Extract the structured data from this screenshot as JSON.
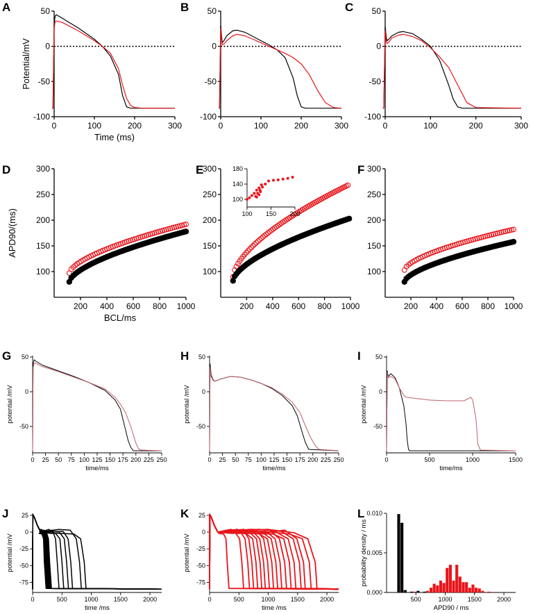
{
  "figure": {
    "panel_labels": [
      "A",
      "B",
      "C",
      "D",
      "E",
      "F",
      "G",
      "H",
      "I",
      "J",
      "K",
      "L"
    ]
  },
  "colors": {
    "control": "#000000",
    "mutant": "#e8151b",
    "mutant_light": "#c0606a"
  },
  "chart_data": [
    {
      "id": "A",
      "type": "line",
      "xlabel": "Time (ms)",
      "ylabel": "Potential/mV",
      "xlim": [
        0,
        300
      ],
      "ylim": [
        -100,
        50
      ],
      "xticks": [
        "0",
        "100",
        "200",
        "300"
      ],
      "yticks": [
        "50",
        "0",
        "-50",
        "-100"
      ],
      "reference_line": 0,
      "series": [
        {
          "name": "black",
          "color": "#000000",
          "x": [
            -5,
            -3,
            0,
            2,
            5,
            20,
            40,
            60,
            80,
            100,
            120,
            140,
            160,
            170,
            180,
            190,
            200,
            300
          ],
          "y": [
            -88,
            -88,
            30,
            42,
            45,
            40,
            33,
            26,
            18,
            10,
            0,
            -14,
            -40,
            -70,
            -86,
            -88,
            -88,
            -88
          ]
        },
        {
          "name": "red",
          "color": "#e8151b",
          "x": [
            -5,
            -3,
            0,
            2,
            5,
            20,
            40,
            60,
            80,
            100,
            120,
            140,
            160,
            170,
            180,
            190,
            200,
            220,
            300
          ],
          "y": [
            -88,
            -88,
            25,
            34,
            36,
            34,
            28,
            22,
            15,
            8,
            0,
            -10,
            -32,
            -55,
            -74,
            -84,
            -87,
            -88,
            -88
          ]
        }
      ]
    },
    {
      "id": "B",
      "type": "line",
      "xlabel": "",
      "ylabel": "",
      "xlim": [
        0,
        300
      ],
      "ylim": [
        -100,
        50
      ],
      "xticks": [
        "0",
        "100",
        "200",
        "300"
      ],
      "yticks": [
        "50",
        "0",
        "-50",
        "-100"
      ],
      "reference_line": 0,
      "series": [
        {
          "name": "black",
          "color": "#000000",
          "x": [
            -5,
            -3,
            0,
            2,
            4,
            8,
            15,
            30,
            40,
            60,
            80,
            100,
            120,
            140,
            160,
            180,
            190,
            200,
            210,
            300
          ],
          "y": [
            -88,
            -88,
            30,
            15,
            5,
            8,
            15,
            22,
            23,
            20,
            14,
            8,
            2,
            -5,
            -16,
            -45,
            -70,
            -86,
            -88,
            -88
          ]
        },
        {
          "name": "red",
          "color": "#e8151b",
          "x": [
            -5,
            -3,
            0,
            2,
            4,
            8,
            15,
            30,
            40,
            60,
            80,
            100,
            120,
            140,
            160,
            180,
            200,
            220,
            240,
            260,
            280,
            300
          ],
          "y": [
            -88,
            -88,
            25,
            10,
            2,
            3,
            8,
            15,
            17,
            15,
            10,
            5,
            0,
            -5,
            -10,
            -16,
            -25,
            -40,
            -62,
            -80,
            -87,
            -88
          ]
        }
      ]
    },
    {
      "id": "C",
      "type": "line",
      "xlabel": "",
      "ylabel": "",
      "xlim": [
        0,
        300
      ],
      "ylim": [
        -100,
        50
      ],
      "xticks": [
        "0",
        "100",
        "200",
        "300"
      ],
      "yticks": [
        "50",
        "0",
        "-50",
        "-100"
      ],
      "reference_line": 0,
      "series": [
        {
          "name": "black",
          "color": "#000000",
          "x": [
            -5,
            -3,
            0,
            2,
            4,
            8,
            15,
            30,
            40,
            60,
            80,
            100,
            120,
            140,
            150,
            160,
            170,
            300
          ],
          "y": [
            -88,
            -88,
            28,
            15,
            8,
            10,
            15,
            20,
            21,
            18,
            10,
            0,
            -20,
            -55,
            -75,
            -86,
            -88,
            -88
          ]
        },
        {
          "name": "red",
          "color": "#e8151b",
          "x": [
            -5,
            -3,
            0,
            2,
            4,
            8,
            15,
            30,
            40,
            60,
            80,
            100,
            120,
            140,
            160,
            180,
            200,
            300
          ],
          "y": [
            -88,
            -88,
            22,
            8,
            4,
            6,
            12,
            16,
            17,
            14,
            8,
            -2,
            -15,
            -30,
            -55,
            -80,
            -87,
            -88
          ]
        }
      ]
    },
    {
      "id": "D",
      "type": "scatter",
      "xlabel": "BCL/ms",
      "ylabel": "APD90/(ms)",
      "xlim": [
        0,
        1000
      ],
      "ylim": [
        50,
        300
      ],
      "xticks": [
        "200",
        "400",
        "600",
        "800",
        "1000"
      ],
      "yticks": [
        "100",
        "150",
        "200",
        "250",
        "300"
      ],
      "series": [
        {
          "name": "red",
          "color": "#e8151b",
          "marker": "open",
          "x": [
            115,
            1000
          ],
          "y": [
            97,
            192
          ],
          "points": 60
        },
        {
          "name": "black",
          "color": "#000000",
          "marker": "filled",
          "x": [
            115,
            1000
          ],
          "y": [
            80,
            178
          ],
          "points": 60
        }
      ]
    },
    {
      "id": "E",
      "type": "scatter",
      "xlabel": "",
      "ylabel": "",
      "xlim": [
        0,
        1000
      ],
      "ylim": [
        50,
        300
      ],
      "xticks": [
        "200",
        "400",
        "600",
        "800",
        "1000"
      ],
      "yticks": [
        "100",
        "150",
        "200",
        "250",
        "300"
      ],
      "series": [
        {
          "name": "red",
          "color": "#e8151b",
          "marker": "open",
          "x": [
            95,
            980
          ],
          "y": [
            90,
            268
          ],
          "points": 70
        },
        {
          "name": "black",
          "color": "#000000",
          "marker": "filled",
          "x": [
            95,
            990
          ],
          "y": [
            82,
            203
          ],
          "points": 70
        }
      ],
      "inset": {
        "xlim": [
          100,
          200
        ],
        "ylim": [
          80,
          180
        ],
        "xticks": [
          "100",
          "150",
          "200"
        ],
        "yticks": [
          "180",
          "140",
          "100"
        ],
        "x": [
          100,
          105,
          110,
          115,
          120,
          125,
          130,
          128,
          125,
          120,
          118,
          122,
          127,
          132,
          138,
          145,
          155,
          165,
          175,
          185,
          195
        ],
        "y": [
          100,
          104,
          110,
          116,
          124,
          130,
          138,
          120,
          112,
          106,
          108,
          116,
          124,
          132,
          140,
          148,
          150,
          151,
          153,
          155,
          158
        ]
      }
    },
    {
      "id": "F",
      "type": "scatter",
      "xlabel": "",
      "ylabel": "",
      "xlim": [
        0,
        1000
      ],
      "ylim": [
        50,
        300
      ],
      "xticks": [
        "200",
        "400",
        "600",
        "800",
        "1000"
      ],
      "yticks": [
        "100",
        "150",
        "200",
        "250",
        "300"
      ],
      "series": [
        {
          "name": "red",
          "color": "#e8151b",
          "marker": "open",
          "x": [
            150,
            1000
          ],
          "y": [
            103,
            182
          ],
          "points": 55
        },
        {
          "name": "black",
          "color": "#000000",
          "marker": "filled",
          "x": [
            150,
            1000
          ],
          "y": [
            80,
            158
          ],
          "points": 55
        }
      ]
    },
    {
      "id": "G",
      "type": "line",
      "xlabel": "time/ms",
      "ylabel": "potential /mV",
      "xlim": [
        0,
        250
      ],
      "ylim": [
        -88,
        52
      ],
      "xticks": [
        "0",
        "25",
        "50",
        "75",
        "100",
        "125",
        "150",
        "175",
        "200",
        "225",
        "250"
      ],
      "yticks": [
        "50",
        "0",
        "-50"
      ],
      "series": [
        {
          "name": "black",
          "color": "#000000",
          "x": [
            0,
            1,
            3,
            6,
            20,
            50,
            80,
            110,
            140,
            160,
            170,
            175,
            180,
            185,
            190,
            195,
            250
          ],
          "y": [
            -85,
            40,
            46,
            44,
            38,
            30,
            22,
            13,
            2,
            -12,
            -25,
            -40,
            -55,
            -70,
            -80,
            -85,
            -85
          ]
        },
        {
          "name": "red",
          "color": "#c0606a",
          "x": [
            0,
            1,
            3,
            6,
            20,
            50,
            80,
            110,
            140,
            160,
            170,
            180,
            190,
            195,
            200,
            205,
            210,
            250
          ],
          "y": [
            -85,
            35,
            41,
            41,
            36,
            29,
            21,
            13,
            4,
            -8,
            -18,
            -30,
            -50,
            -62,
            -74,
            -82,
            -84,
            -85
          ]
        }
      ]
    },
    {
      "id": "H",
      "type": "line",
      "xlabel": "time/ms",
      "ylabel": "potential /mV",
      "xlim": [
        0,
        250
      ],
      "ylim": [
        -88,
        52
      ],
      "xticks": [
        "0",
        "25",
        "50",
        "75",
        "100",
        "125",
        "150",
        "175",
        "200",
        "225",
        "250"
      ],
      "yticks": [
        "50",
        "0",
        "-50"
      ],
      "series": [
        {
          "name": "black",
          "color": "#000000",
          "x": [
            0,
            1,
            3,
            6,
            10,
            20,
            40,
            60,
            80,
            100,
            120,
            140,
            160,
            170,
            178,
            185,
            192,
            250
          ],
          "y": [
            -85,
            40,
            25,
            18,
            15,
            18,
            22,
            21,
            17,
            12,
            5,
            -5,
            -20,
            -35,
            -55,
            -72,
            -83,
            -85
          ]
        },
        {
          "name": "red",
          "color": "#c0606a",
          "x": [
            0,
            1,
            3,
            6,
            10,
            20,
            40,
            60,
            80,
            100,
            120,
            140,
            160,
            175,
            185,
            195,
            205,
            212,
            250
          ],
          "y": [
            -85,
            35,
            22,
            17,
            15,
            18,
            22,
            21,
            17,
            12,
            6,
            -3,
            -15,
            -30,
            -48,
            -65,
            -78,
            -83,
            -85
          ]
        }
      ]
    },
    {
      "id": "I",
      "type": "line",
      "xlabel": "time/ms",
      "ylabel": "potential /mV",
      "xlim": [
        0,
        1500
      ],
      "ylim": [
        -88,
        52
      ],
      "xticks": [
        "0",
        "500",
        "1000",
        "1500"
      ],
      "yticks": [
        "50",
        "0",
        "-50"
      ],
      "series": [
        {
          "name": "black",
          "color": "#000000",
          "x": [
            0,
            8,
            20,
            50,
            100,
            150,
            200,
            225,
            240,
            255,
            270,
            1500
          ],
          "y": [
            -85,
            30,
            22,
            26,
            20,
            5,
            -20,
            -45,
            -70,
            -83,
            -85,
            -85
          ]
        },
        {
          "name": "red",
          "color": "#c0606a",
          "x": [
            0,
            8,
            20,
            50,
            100,
            150,
            200,
            230,
            300,
            500,
            700,
            900,
            980,
            1000,
            1040,
            1060,
            1090,
            1500
          ],
          "y": [
            -85,
            28,
            20,
            22,
            18,
            5,
            -5,
            -8,
            -9,
            -12,
            -13,
            -13,
            -8,
            -12,
            -40,
            -75,
            -84,
            -85
          ]
        }
      ]
    },
    {
      "id": "J",
      "type": "line",
      "xlabel": "time /ms",
      "ylabel": "potential /mV",
      "xlim": [
        0,
        2200
      ],
      "ylim": [
        -90,
        28
      ],
      "xticks": [
        "0",
        "500",
        "1000",
        "1500",
        "2000"
      ],
      "yticks": [
        "25",
        "0",
        "-25",
        "-50",
        "-75"
      ],
      "traces": {
        "color": "#000000",
        "repolarization_ms": [
          200,
          215,
          230,
          245,
          260,
          275,
          290,
          420,
          500,
          580,
          650,
          800,
          880
        ],
        "resting_mV": -85
      }
    },
    {
      "id": "K",
      "type": "line",
      "xlabel": "time /ms",
      "ylabel": "potential /mV",
      "xlim": [
        0,
        2200
      ],
      "ylim": [
        -90,
        28
      ],
      "xticks": [
        "0",
        "500",
        "1000",
        "1500",
        "2000"
      ],
      "yticks": [
        "25",
        "0",
        "-25",
        "-50",
        "-75"
      ],
      "traces": {
        "color": "#e8151b",
        "repolarization_ms": [
          300,
          550,
          650,
          720,
          790,
          860,
          920,
          990,
          1060,
          1130,
          1200,
          1280,
          1360,
          1440,
          1530,
          1600,
          1700,
          1800
        ],
        "resting_mV": -85
      }
    },
    {
      "id": "L",
      "type": "bar",
      "xlabel": "APD90 / ms",
      "ylabel": "probability density / ms",
      "xlim": [
        0,
        2200
      ],
      "ylim": [
        0,
        0.01
      ],
      "xticks": [
        "500",
        "1000",
        "1500",
        "2000"
      ],
      "yticks": [
        "0.010",
        "0.005",
        "0.000"
      ],
      "series": [
        {
          "name": "black",
          "color": "#000000",
          "bin_width": 55,
          "x": [
            210,
            265,
            320,
            430,
            540,
            650
          ],
          "values": [
            0.0099,
            0.0088,
            0.0003,
            0.0001,
            0.0002,
            0.0001
          ]
        },
        {
          "name": "red",
          "color": "#e8151b",
          "bin_width": 55,
          "x": [
            480,
            700,
            760,
            815,
            870,
            925,
            980,
            1035,
            1090,
            1145,
            1200,
            1255,
            1310,
            1365,
            1420,
            1475,
            1530,
            1585,
            1640,
            1750
          ],
          "values": [
            0.0001,
            0.0002,
            0.0006,
            0.0011,
            0.0009,
            0.0015,
            0.0012,
            0.0031,
            0.0035,
            0.0015,
            0.0035,
            0.002,
            0.0013,
            0.0013,
            0.0006,
            0.001,
            0.0006,
            0.0005,
            0.0002,
            0.0001
          ]
        }
      ]
    }
  ]
}
